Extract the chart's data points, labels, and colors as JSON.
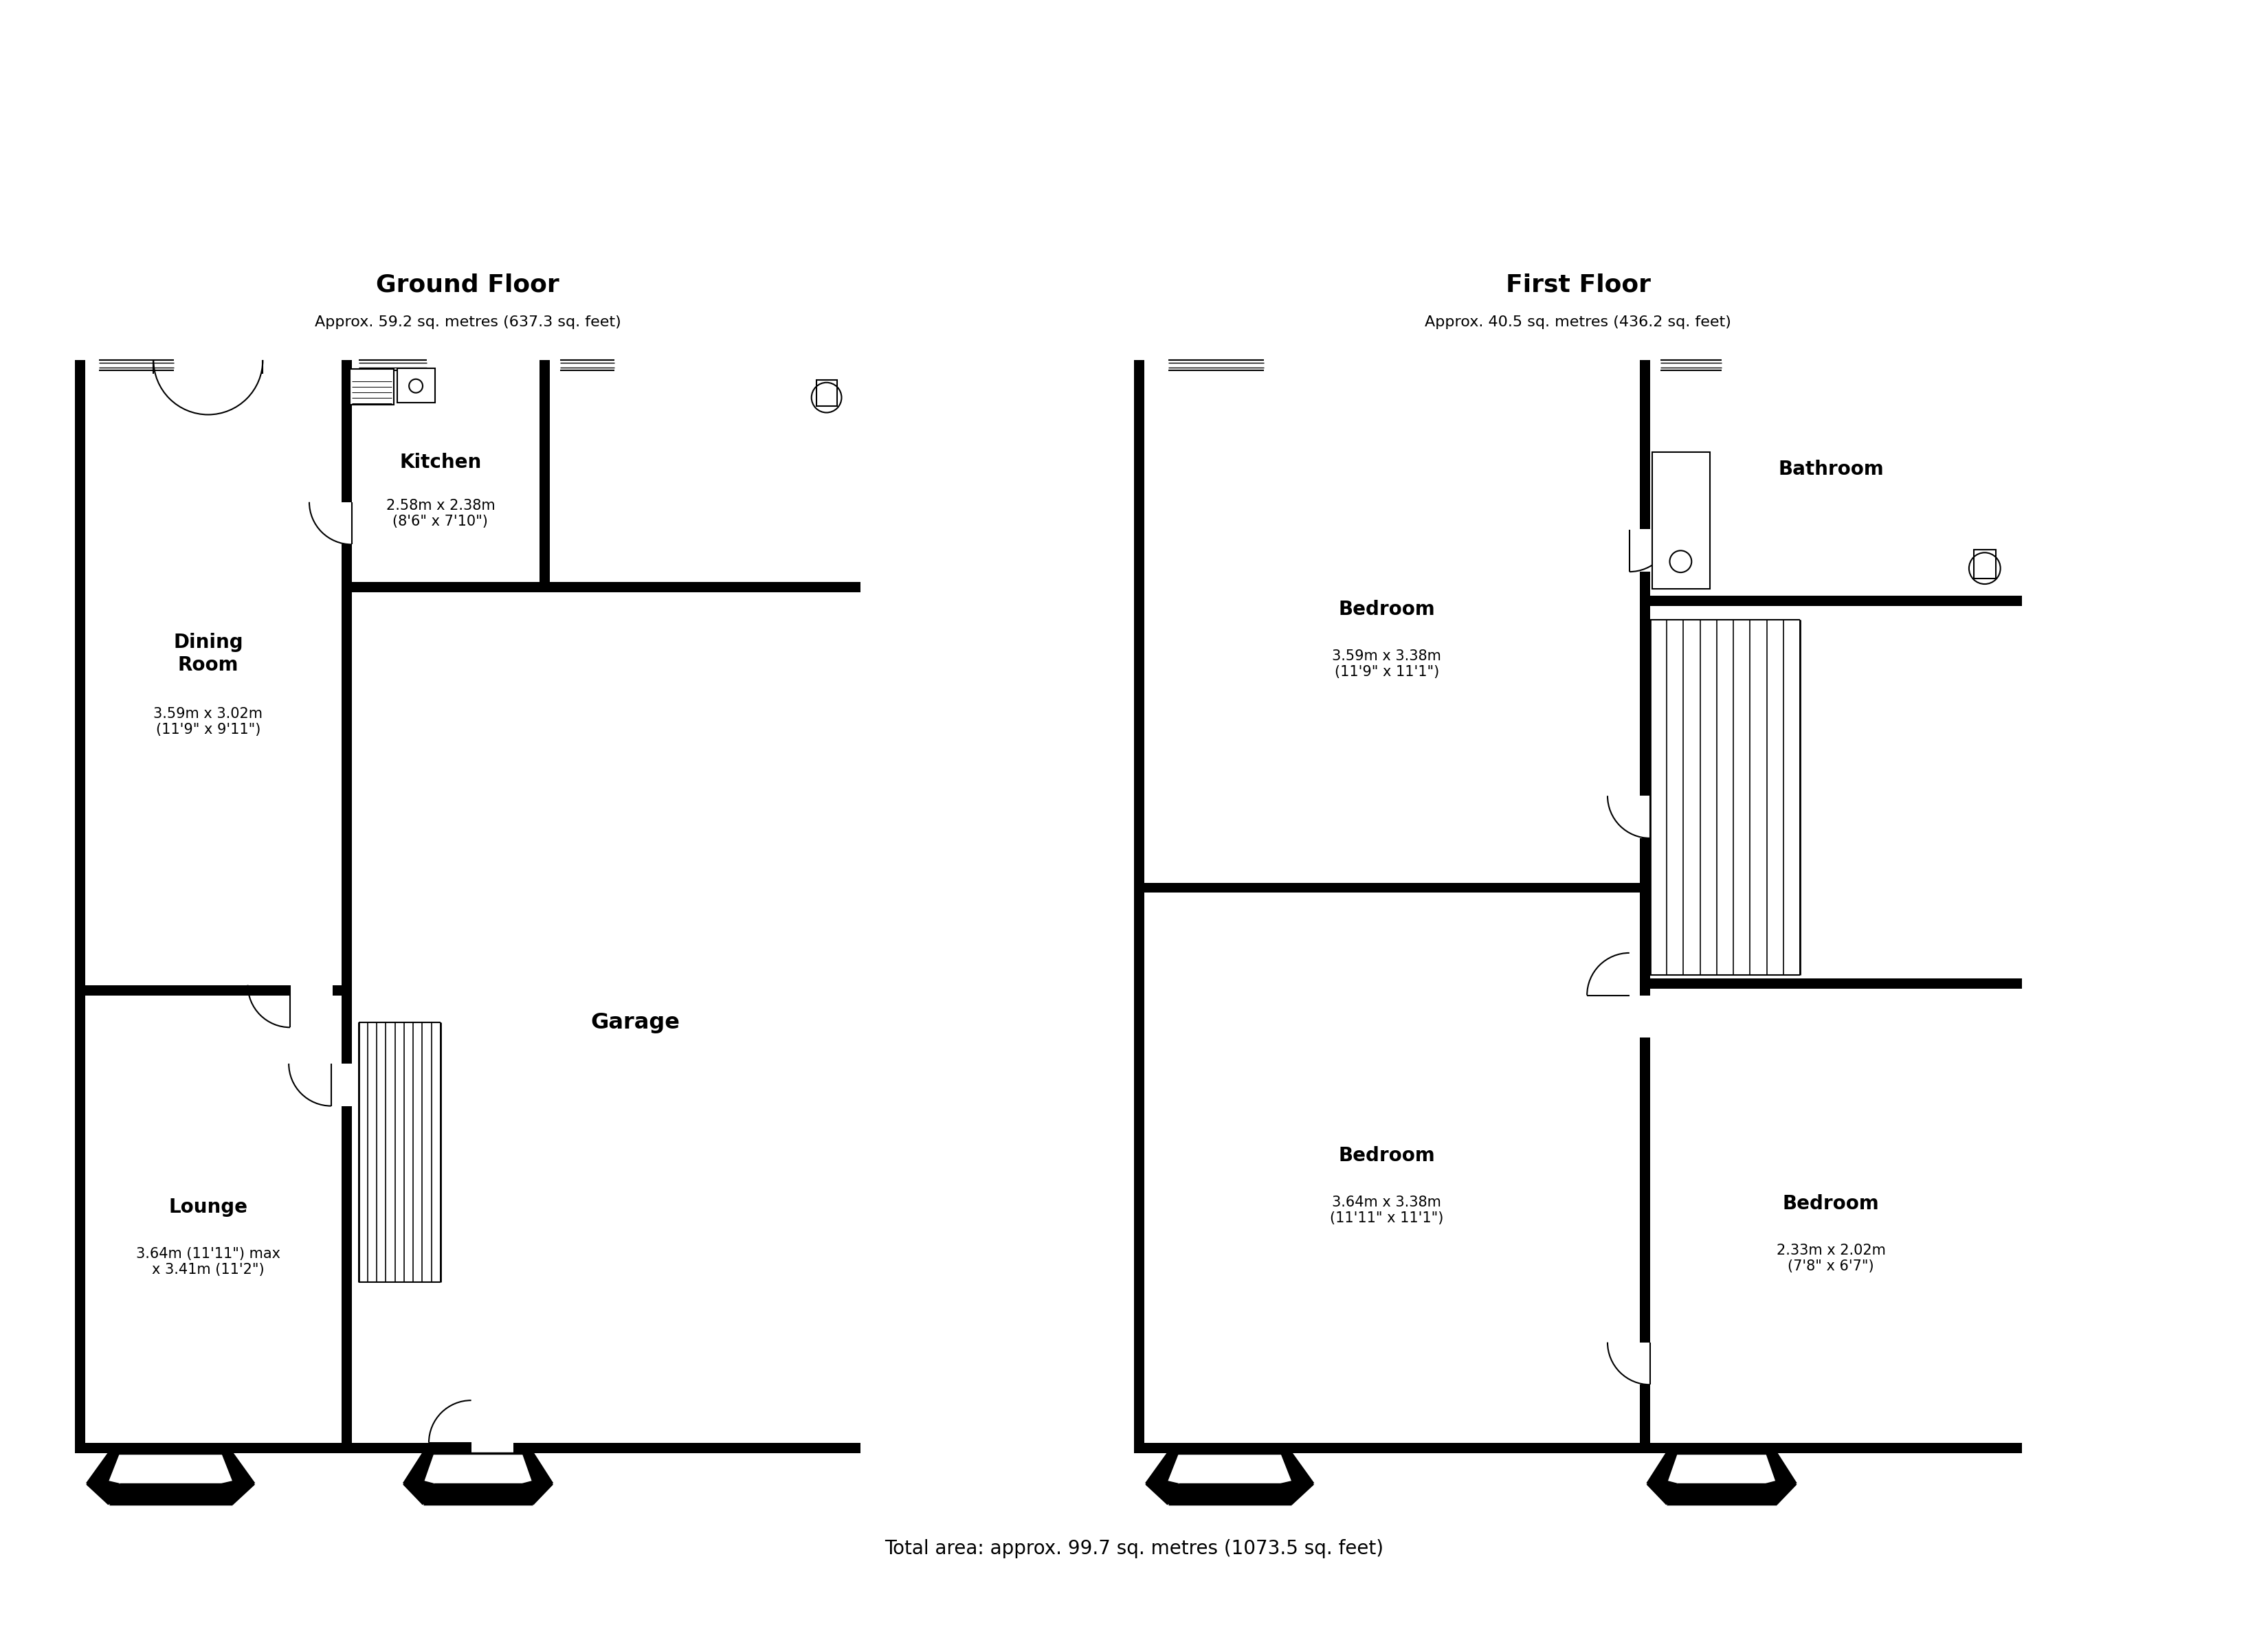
{
  "ground_floor_title": "Ground Floor",
  "ground_floor_subtitle": "Approx. 59.2 sq. metres (637.3 sq. feet)",
  "first_floor_title": "First Floor",
  "first_floor_subtitle": "Approx. 40.5 sq. metres (436.2 sq. feet)",
  "total_area": "Total area: approx. 99.7 sq. metres (1073.5 sq. feet)",
  "dining_room_label": "Dining\nRoom",
  "dining_room_dims": "3.59m x 3.02m\n(11'9\" x 9'11\")",
  "kitchen_label": "Kitchen",
  "kitchen_dims": "2.58m x 2.38m\n(8'6\" x 7'10\")",
  "garage_label": "Garage",
  "lounge_label": "Lounge",
  "lounge_dims": "3.64m (11'11\") max\nx 3.41m (11'2\")",
  "bedroom1_label": "Bedroom",
  "bedroom1_dims": "3.59m x 3.38m\n(11'9\" x 11'1\")",
  "bathroom_label": "Bathroom",
  "bedroom2_label": "Bedroom",
  "bedroom2_dims": "3.64m x 3.38m\n(11'11\" x 11'1\")",
  "bedroom3_label": "Bedroom",
  "bedroom3_dims": "2.33m x 2.02m\n(7'8\" x 6'7\")",
  "wall_color": "#000000",
  "bg_color": "#ffffff"
}
